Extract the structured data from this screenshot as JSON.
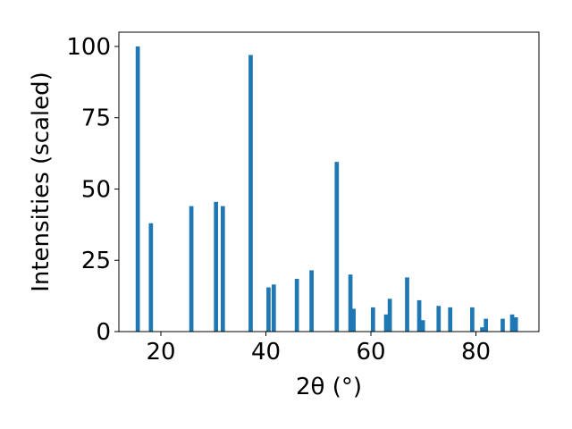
{
  "chart_data": {
    "type": "bar",
    "title": "",
    "xlabel": "2θ (°)",
    "ylabel": "Intensities (scaled)",
    "xlim": [
      12,
      92
    ],
    "ylim": [
      0,
      105
    ],
    "xticks": [
      20,
      40,
      60,
      80
    ],
    "yticks": [
      0,
      25,
      50,
      75,
      100
    ],
    "grid": false,
    "legend": "none",
    "bar_color": "#1f77b4",
    "bar_width": 0.8,
    "x": [
      15.6,
      18.1,
      25.8,
      30.5,
      31.8,
      37.1,
      40.5,
      41.5,
      45.9,
      48.7,
      53.5,
      56.1,
      56.7,
      60.4,
      62.9,
      63.6,
      66.9,
      69.2,
      69.9,
      72.9,
      75.1,
      79.3,
      81.2,
      81.9,
      85.1,
      86.9,
      87.6
    ],
    "values": [
      100,
      38,
      44,
      45.5,
      44,
      97,
      15.5,
      16.5,
      18.5,
      21.5,
      59.5,
      20,
      8,
      8.5,
      6,
      11.5,
      19,
      11,
      4,
      9,
      8.5,
      8.5,
      1.5,
      4.5,
      4.5,
      6,
      5
    ]
  }
}
